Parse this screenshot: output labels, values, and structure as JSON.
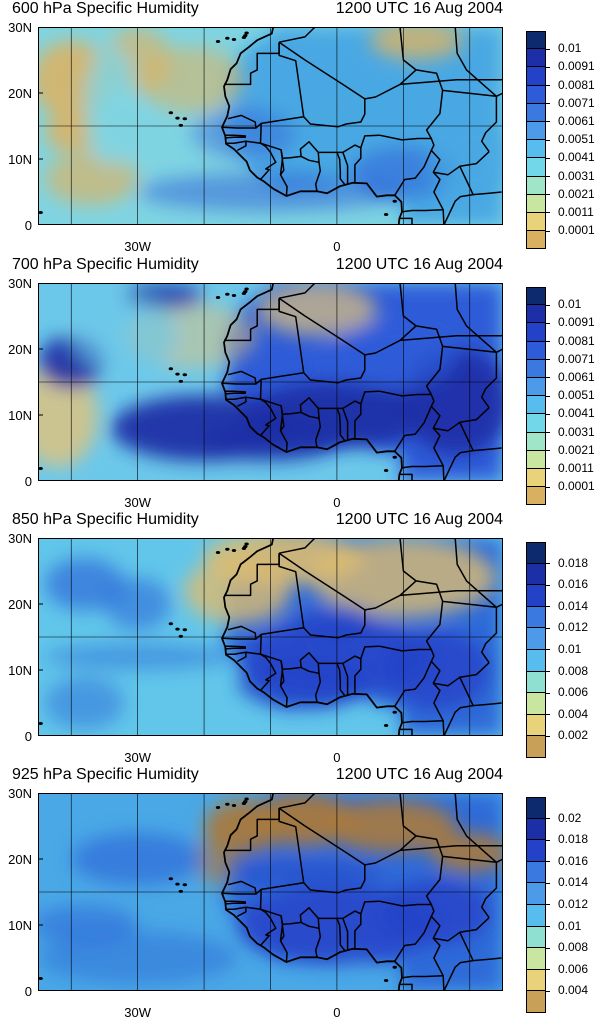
{
  "panels": [
    {
      "title_left": "600 hPa Specific Humidity",
      "title_right": "1200 UTC 16 Aug 2004",
      "lat_labels": [
        "30N",
        "20N",
        "10N",
        "0"
      ],
      "lon_labels": [
        "30W",
        "0"
      ],
      "legend_labels": [
        "0.01",
        "0.0091",
        "0.0081",
        "0.0071",
        "0.0061",
        "0.0051",
        "0.0041",
        "0.0031",
        "0.0021",
        "0.0011",
        "0.0001"
      ],
      "legend_colors": [
        "#0e2a6e",
        "#1d2fa6",
        "#2442c8",
        "#2e5bd8",
        "#3a79e0",
        "#4c9ae8",
        "#58bdee",
        "#72d7e8",
        "#9fe6c8",
        "#c8e6a0",
        "#e8d27a",
        "#d9b060",
        "#a67a3e"
      ],
      "field": {
        "land_color": "#49a8e3",
        "ocean_color": "#7fd4e2",
        "dry_color": "#d9b467",
        "moist_color": "#2e5bd8"
      }
    },
    {
      "title_left": "700 hPa Specific Humidity",
      "title_right": "1200 UTC 16 Aug 2004",
      "lat_labels": [
        "30N",
        "20N",
        "10N",
        "0"
      ],
      "lon_labels": [
        "30W",
        "0"
      ],
      "legend_labels": [
        "0.01",
        "0.0091",
        "0.0081",
        "0.0071",
        "0.0061",
        "0.0051",
        "0.0041",
        "0.0031",
        "0.0021",
        "0.0011",
        "0.0001"
      ],
      "legend_colors": [
        "#0e2a6e",
        "#1d2fa6",
        "#2442c8",
        "#2e5bd8",
        "#3a79e0",
        "#4c9ae8",
        "#58bdee",
        "#72d7e8",
        "#9fe6c8",
        "#c8e6a0",
        "#e8d27a",
        "#d9b060",
        "#a67a3e"
      ],
      "field": {
        "land_color": "#2e5bd8",
        "ocean_color": "#6cc8ea",
        "dry_color": "#e3c37a",
        "moist_color": "#1d2fa6"
      }
    },
    {
      "title_left": "850 hPa Specific Humidity",
      "title_right": "1200 UTC 16 Aug 2004",
      "lat_labels": [
        "30N",
        "20N",
        "10N",
        "0"
      ],
      "lon_labels": [
        "30W",
        "0"
      ],
      "legend_labels": [
        "0.018",
        "0.016",
        "0.014",
        "0.012",
        "0.01",
        "0.008",
        "0.006",
        "0.004",
        "0.002"
      ],
      "legend_colors": [
        "#0e2a6e",
        "#1d2fa6",
        "#2442c8",
        "#3a79e0",
        "#4c9ae8",
        "#58bdee",
        "#8fe0d0",
        "#c8e6a0",
        "#e8d27a",
        "#c9a058",
        "#a67a3e"
      ],
      "field": {
        "land_color": "#2e6bd8",
        "ocean_color": "#62c6ea",
        "dry_color": "#dcbc72",
        "moist_color": "#2442c8"
      }
    },
    {
      "title_left": "925 hPa Specific Humidity",
      "title_right": "1200 UTC 16 Aug 2004",
      "lat_labels": [
        "30N",
        "20N",
        "10N",
        "0"
      ],
      "lon_labels": [
        "30W",
        "0"
      ],
      "legend_labels": [
        "0.02",
        "0.018",
        "0.016",
        "0.014",
        "0.012",
        "0.01",
        "0.008",
        "0.006",
        "0.004"
      ],
      "legend_colors": [
        "#0e2a6e",
        "#1d2fa6",
        "#2442c8",
        "#3a79e0",
        "#4c9ae8",
        "#58bdee",
        "#8fe0d0",
        "#c8e6a0",
        "#e8d27a",
        "#c9a058",
        "#a67a3e"
      ],
      "field": {
        "land_color": "#2e6bd8",
        "ocean_color": "#4aa8e6",
        "dry_color": "#a87a3e",
        "moist_color": "#2442c8"
      }
    }
  ]
}
